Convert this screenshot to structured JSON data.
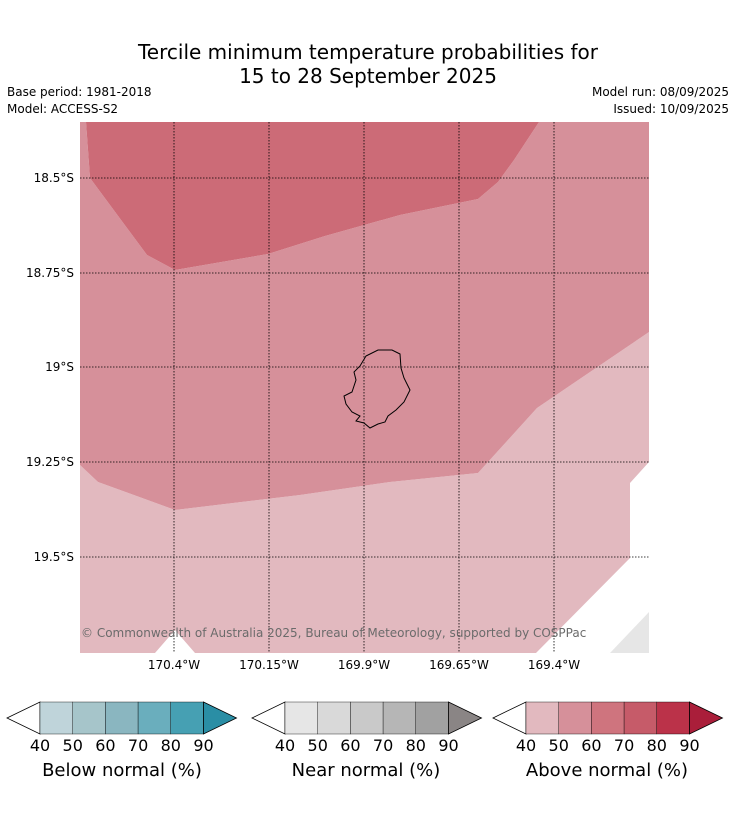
{
  "header": {
    "title_line1": "Tercile minimum temperature probabilities for",
    "title_line2": "15 to 28 September 2025",
    "base_period": "Base period: 1981-2018",
    "model": "Model: ACCESS-S2",
    "model_run": "Model run: 08/09/2025",
    "issued": "Issued: 10/09/2025"
  },
  "map": {
    "lat_labels": [
      "18.5°S",
      "18.75°S",
      "19°S",
      "19.25°S",
      "19.5°S"
    ],
    "lon_labels": [
      "170.4°W",
      "170.15°W",
      "169.9°W",
      "169.65°W",
      "169.4°W"
    ],
    "copyright": "© Commonwealth of Australia 2025, Bureau of Meteorology, supported by COSPPac",
    "region_colors": {
      "above_70": "#cc6b77",
      "above_60": "#d6909a",
      "above_50": "#e2b9bf",
      "near_40": "#e6e6e6"
    }
  },
  "colorbars": [
    {
      "name": "below",
      "label": "Below normal (%)",
      "ticks": [
        "40",
        "50",
        "60",
        "70",
        "80",
        "90"
      ],
      "colors": [
        "#ffffff",
        "#bfd4da",
        "#a6c5ca",
        "#8ab6c0",
        "#6aaebd",
        "#46a0b3",
        "#2a8ea5"
      ]
    },
    {
      "name": "near",
      "label": "Near normal (%)",
      "ticks": [
        "40",
        "50",
        "60",
        "70",
        "80",
        "90"
      ],
      "colors": [
        "#ffffff",
        "#e6e6e6",
        "#d9d9d9",
        "#c9c9c9",
        "#b6b6b6",
        "#a1a1a1",
        "#8a8585"
      ]
    },
    {
      "name": "above",
      "label": "Above normal (%)",
      "ticks": [
        "40",
        "50",
        "60",
        "70",
        "80",
        "90"
      ],
      "colors": [
        "#ffffff",
        "#e2b9bf",
        "#d6909a",
        "#cf747e",
        "#c65b69",
        "#bb3249",
        "#aa1e3a"
      ]
    }
  ]
}
